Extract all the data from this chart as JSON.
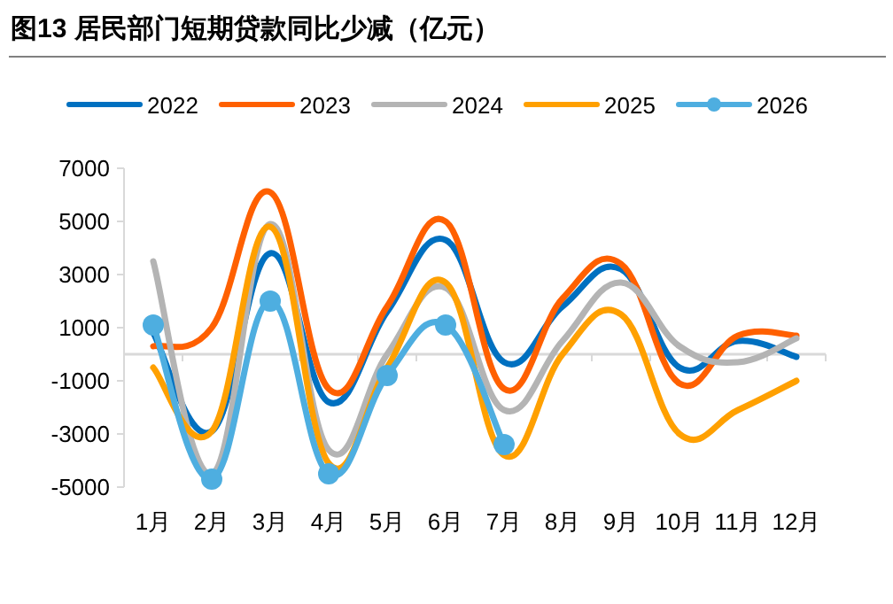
{
  "chart_data": {
    "type": "line",
    "title": "图13 居民部门短期贷款同比少减（亿元）",
    "categories": [
      "1月",
      "2月",
      "3月",
      "4月",
      "5月",
      "6月",
      "7月",
      "8月",
      "9月",
      "10月",
      "11月",
      "12月"
    ],
    "series": [
      {
        "name": "2022",
        "color": "#0070c0",
        "values": [
          800,
          -2900,
          3800,
          -1800,
          1600,
          4300,
          -300,
          1800,
          3200,
          -500,
          500,
          -100
        ]
      },
      {
        "name": "2023",
        "color": "#ff6000",
        "values": [
          300,
          1000,
          6100,
          -1300,
          1800,
          5000,
          -1300,
          2100,
          3400,
          -1100,
          700,
          700
        ]
      },
      {
        "name": "2024",
        "color": "#b4b4b4",
        "values": [
          3500,
          -4500,
          4900,
          -3600,
          0,
          2500,
          -2100,
          500,
          2700,
          300,
          -300,
          600
        ]
      },
      {
        "name": "2025",
        "color": "#ffa000",
        "values": [
          -500,
          -2900,
          4800,
          -4100,
          -500,
          2700,
          -3800,
          0,
          1500,
          -3000,
          -2100,
          -1000
        ]
      },
      {
        "name": "2026",
        "color": "#4eaee0",
        "marker": "circle",
        "values": [
          1100,
          -4700,
          2000,
          -4500,
          -800,
          1100,
          -3400,
          null,
          null,
          null,
          null,
          null
        ]
      }
    ],
    "ylim": [
      -5000,
      7000
    ],
    "yticks": [
      -5000,
      -3000,
      -1000,
      1000,
      3000,
      5000,
      7000
    ],
    "grid": false,
    "legend": "top"
  }
}
